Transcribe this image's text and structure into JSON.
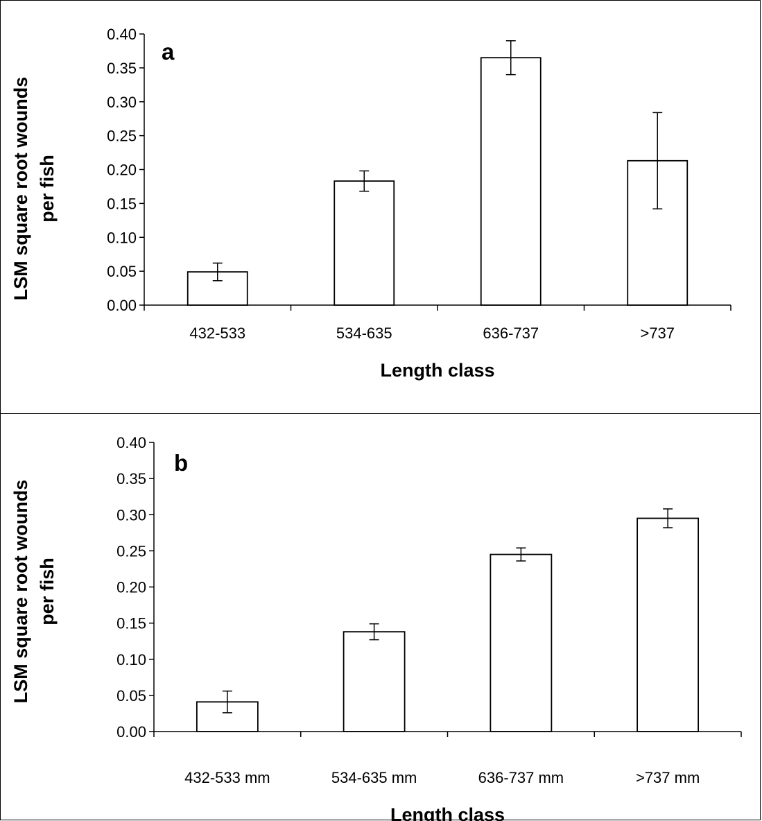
{
  "chart_data": [
    {
      "type": "bar",
      "panel_label": "a",
      "categories": [
        "432-533",
        "534-635",
        "636-737",
        ">737"
      ],
      "values": [
        0.049,
        0.183,
        0.365,
        0.213
      ],
      "errors": [
        0.013,
        0.015,
        0.025,
        0.071
      ],
      "ylabel": "LSM square root wounds per fish",
      "ylabel_lines": [
        "LSM square root wounds",
        "per fish"
      ],
      "xlabel": "Length class",
      "ylim": [
        0,
        0.4
      ],
      "yticks": [
        "0.00",
        "0.05",
        "0.10",
        "0.15",
        "0.20",
        "0.25",
        "0.30",
        "0.35",
        "0.40"
      ],
      "grid": false,
      "bar_fill": "#ffffff",
      "bar_stroke": "#000000"
    },
    {
      "type": "bar",
      "panel_label": "b",
      "categories": [
        "432-533 mm",
        "534-635 mm",
        "636-737 mm",
        ">737 mm"
      ],
      "values": [
        0.041,
        0.138,
        0.245,
        0.295
      ],
      "errors": [
        0.015,
        0.011,
        0.009,
        0.013
      ],
      "ylabel": "LSM square root wounds per fish",
      "ylabel_lines": [
        "LSM square root wounds",
        "per fish"
      ],
      "xlabel": "Length class",
      "ylim": [
        0,
        0.4
      ],
      "yticks": [
        "0.00",
        "0.05",
        "0.10",
        "0.15",
        "0.20",
        "0.25",
        "0.30",
        "0.35",
        "0.40"
      ],
      "grid": false,
      "bar_fill": "#ffffff",
      "bar_stroke": "#000000"
    }
  ]
}
